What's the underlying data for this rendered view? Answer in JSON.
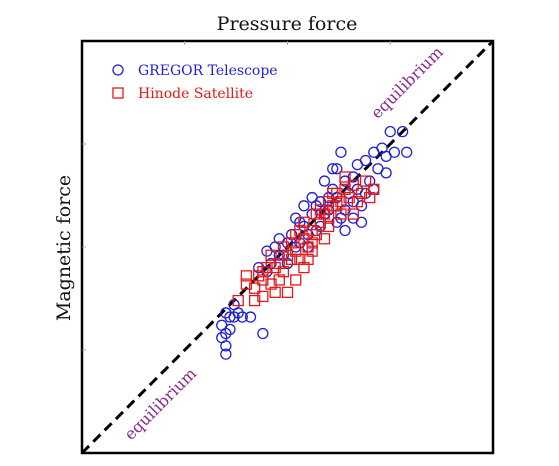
{
  "chart_data": {
    "type": "scatter",
    "title": "Pressure force",
    "xlabel": "",
    "ylabel": "Magnetic force",
    "xlim": [
      0,
      1
    ],
    "ylim": [
      0,
      1
    ],
    "grid": false,
    "legend_position": "top-left",
    "series": [
      {
        "name": "GREGOR Telescope",
        "marker": "circle",
        "color": "#1f1fd6",
        "points": [
          [
            0.35,
            0.34
          ],
          [
            0.34,
            0.31
          ],
          [
            0.35,
            0.29
          ],
          [
            0.36,
            0.33
          ],
          [
            0.36,
            0.3
          ],
          [
            0.34,
            0.28
          ],
          [
            0.35,
            0.26
          ],
          [
            0.35,
            0.24
          ],
          [
            0.37,
            0.33
          ],
          [
            0.39,
            0.33
          ],
          [
            0.41,
            0.33
          ],
          [
            0.44,
            0.29
          ],
          [
            0.38,
            0.34
          ],
          [
            0.37,
            0.36
          ],
          [
            0.43,
            0.45
          ],
          [
            0.45,
            0.49
          ],
          [
            0.46,
            0.46
          ],
          [
            0.47,
            0.5
          ],
          [
            0.48,
            0.52
          ],
          [
            0.49,
            0.48
          ],
          [
            0.5,
            0.51
          ],
          [
            0.51,
            0.53
          ],
          [
            0.52,
            0.57
          ],
          [
            0.53,
            0.56
          ],
          [
            0.54,
            0.55
          ],
          [
            0.55,
            0.53
          ],
          [
            0.56,
            0.58
          ],
          [
            0.57,
            0.6
          ],
          [
            0.58,
            0.61
          ],
          [
            0.59,
            0.58
          ],
          [
            0.6,
            0.62
          ],
          [
            0.61,
            0.64
          ],
          [
            0.62,
            0.62
          ],
          [
            0.63,
            0.57
          ],
          [
            0.64,
            0.59
          ],
          [
            0.65,
            0.63
          ],
          [
            0.66,
            0.61
          ],
          [
            0.67,
            0.64
          ],
          [
            0.68,
            0.6
          ],
          [
            0.69,
            0.63
          ],
          [
            0.7,
            0.66
          ],
          [
            0.71,
            0.64
          ],
          [
            0.72,
            0.69
          ],
          [
            0.73,
            0.74
          ],
          [
            0.74,
            0.72
          ],
          [
            0.75,
            0.78
          ],
          [
            0.76,
            0.73
          ],
          [
            0.78,
            0.78
          ],
          [
            0.79,
            0.73
          ],
          [
            0.61,
            0.69
          ],
          [
            0.63,
            0.73
          ],
          [
            0.66,
            0.67
          ],
          [
            0.69,
            0.71
          ],
          [
            0.64,
            0.66
          ],
          [
            0.58,
            0.55
          ],
          [
            0.54,
            0.6
          ],
          [
            0.53,
            0.51
          ],
          [
            0.57,
            0.54
          ],
          [
            0.62,
            0.56
          ],
          [
            0.66,
            0.57
          ],
          [
            0.68,
            0.56
          ],
          [
            0.5,
            0.46
          ],
          [
            0.48,
            0.48
          ],
          [
            0.45,
            0.44
          ],
          [
            0.52,
            0.5
          ],
          [
            0.55,
            0.5
          ],
          [
            0.6,
            0.59
          ],
          [
            0.67,
            0.7
          ],
          [
            0.74,
            0.68
          ],
          [
            0.71,
            0.73
          ],
          [
            0.56,
            0.62
          ],
          [
            0.59,
            0.66
          ],
          [
            0.62,
            0.69
          ],
          [
            0.64,
            0.54
          ]
        ]
      },
      {
        "name": "Hinode Satellite",
        "marker": "square",
        "color": "#e01a1a",
        "points": [
          [
            0.38,
            0.37
          ],
          [
            0.4,
            0.41
          ],
          [
            0.4,
            0.43
          ],
          [
            0.42,
            0.4
          ],
          [
            0.43,
            0.43
          ],
          [
            0.44,
            0.42
          ],
          [
            0.44,
            0.38
          ],
          [
            0.46,
            0.41
          ],
          [
            0.47,
            0.45
          ],
          [
            0.48,
            0.46
          ],
          [
            0.49,
            0.44
          ],
          [
            0.5,
            0.48
          ],
          [
            0.51,
            0.47
          ],
          [
            0.52,
            0.49
          ],
          [
            0.53,
            0.47
          ],
          [
            0.54,
            0.52
          ],
          [
            0.55,
            0.5
          ],
          [
            0.56,
            0.54
          ],
          [
            0.57,
            0.53
          ],
          [
            0.58,
            0.56
          ],
          [
            0.59,
            0.58
          ],
          [
            0.6,
            0.57
          ],
          [
            0.61,
            0.6
          ],
          [
            0.62,
            0.63
          ],
          [
            0.63,
            0.61
          ],
          [
            0.64,
            0.64
          ],
          [
            0.65,
            0.62
          ],
          [
            0.66,
            0.65
          ],
          [
            0.67,
            0.61
          ],
          [
            0.68,
            0.63
          ],
          [
            0.69,
            0.66
          ],
          [
            0.71,
            0.64
          ],
          [
            0.46,
            0.48
          ],
          [
            0.49,
            0.5
          ],
          [
            0.51,
            0.51
          ],
          [
            0.55,
            0.47
          ],
          [
            0.52,
            0.42
          ],
          [
            0.5,
            0.39
          ],
          [
            0.47,
            0.39
          ],
          [
            0.45,
            0.45
          ],
          [
            0.53,
            0.54
          ],
          [
            0.56,
            0.51
          ],
          [
            0.6,
            0.55
          ],
          [
            0.57,
            0.58
          ],
          [
            0.61,
            0.63
          ],
          [
            0.63,
            0.58
          ],
          [
            0.64,
            0.67
          ],
          [
            0.62,
            0.6
          ],
          [
            0.58,
            0.59
          ],
          [
            0.54,
            0.56
          ],
          [
            0.48,
            0.42
          ],
          [
            0.44,
            0.44
          ],
          [
            0.42,
            0.37
          ],
          [
            0.54,
            0.45
          ],
          [
            0.59,
            0.52
          ],
          [
            0.66,
            0.58
          ],
          [
            0.7,
            0.62
          ],
          [
            0.6,
            0.61
          ],
          [
            0.52,
            0.53
          ],
          [
            0.56,
            0.49
          ]
        ]
      }
    ],
    "lines": [
      {
        "kind": "equality",
        "style": "dashed",
        "color": "#000000",
        "x": [
          0,
          1
        ],
        "y": [
          0,
          1
        ]
      }
    ],
    "annotations": [
      {
        "text": "equilibrium",
        "color": "#8a2a8f",
        "x": 0.8,
        "y": 0.89
      },
      {
        "text": "equilibrium",
        "color": "#8a2a8f",
        "x": 0.2,
        "y": 0.11
      }
    ]
  }
}
